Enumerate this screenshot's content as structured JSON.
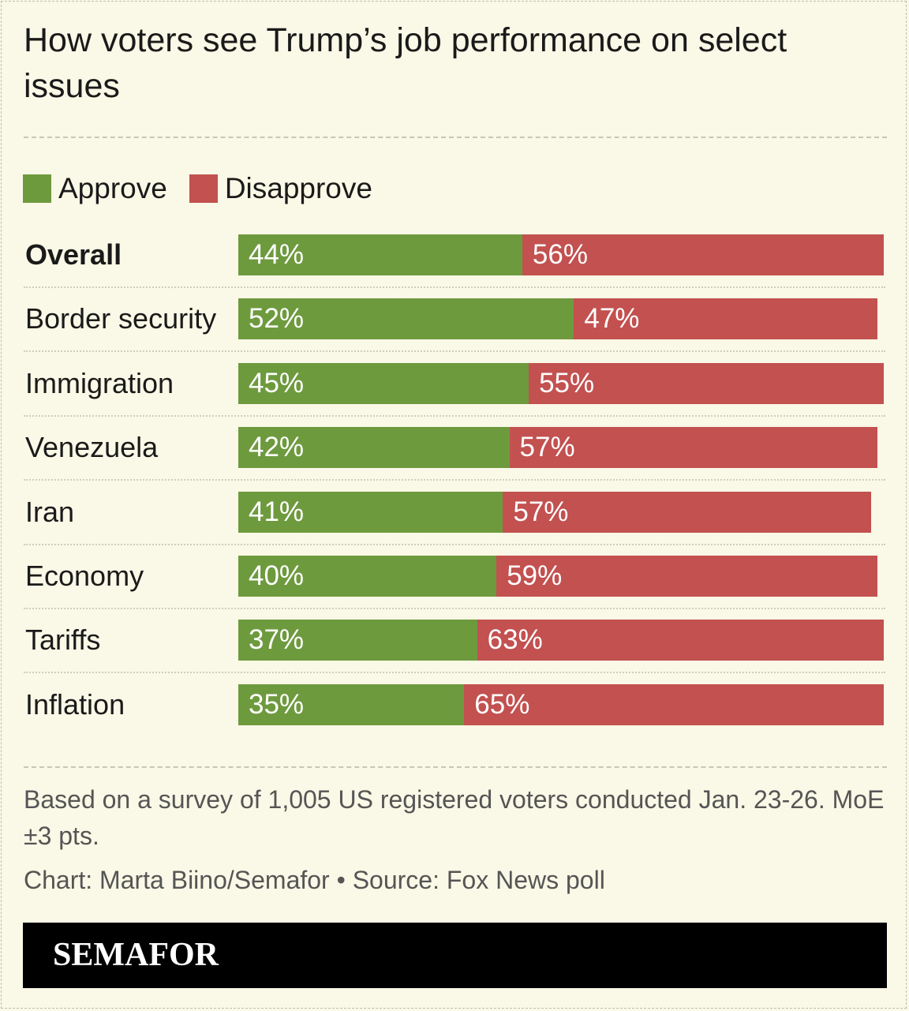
{
  "title": "How voters see Trump’s job performance on select issues",
  "legend": {
    "approve": "Approve",
    "disapprove": "Disapprove"
  },
  "colors": {
    "approve": "#6e9a3e",
    "disapprove": "#c25150",
    "background": "#faf8e6"
  },
  "chart_data": {
    "type": "bar",
    "orientation": "horizontal-stacked",
    "title": "How voters see Trump’s job performance on select issues",
    "categories": [
      "Overall",
      "Border security",
      "Immigration",
      "Venezuela",
      "Iran",
      "Economy",
      "Tariffs",
      "Inflation"
    ],
    "series": [
      {
        "name": "Approve",
        "values": [
          44,
          52,
          45,
          42,
          41,
          40,
          37,
          35
        ]
      },
      {
        "name": "Disapprove",
        "values": [
          56,
          47,
          55,
          57,
          57,
          59,
          63,
          65
        ]
      }
    ],
    "xlim": [
      0,
      100
    ],
    "legend": "top-left",
    "grid": false
  },
  "note": "Based on a survey of 1,005 US registered voters conducted Jan. 23-26. MoE ±3 pts.",
  "credit": "Chart: Marta Biino/Semafor • Source: Fox News poll",
  "footer": {
    "logo": "SEMAFOR"
  }
}
